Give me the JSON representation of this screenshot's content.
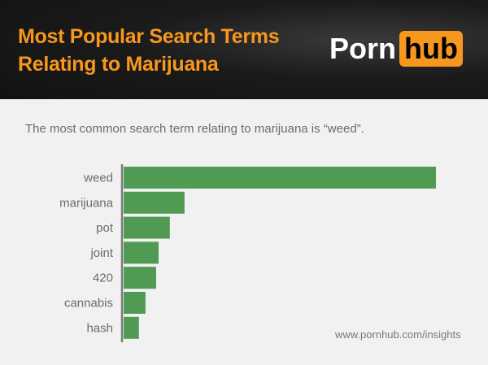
{
  "header": {
    "title_line1": "Most Popular Search Terms",
    "title_line2": "Relating to Marijuana",
    "logo_left": "Porn",
    "logo_right": "hub",
    "accent": "#f7971d"
  },
  "subtitle": "The most common search term relating to marijuana is “weed”.",
  "source": "www.pornhub.com/insights",
  "chart_data": {
    "type": "bar",
    "orientation": "horizontal",
    "categories": [
      "weed",
      "marijuana",
      "pot",
      "joint",
      "420",
      "cannabis",
      "hash"
    ],
    "values": [
      100,
      19.5,
      14.8,
      11.2,
      10.4,
      7.0,
      4.9
    ],
    "value_scale": "relative (weed = 100), no axis printed",
    "bar_color": "#519a53",
    "grid": false
  }
}
